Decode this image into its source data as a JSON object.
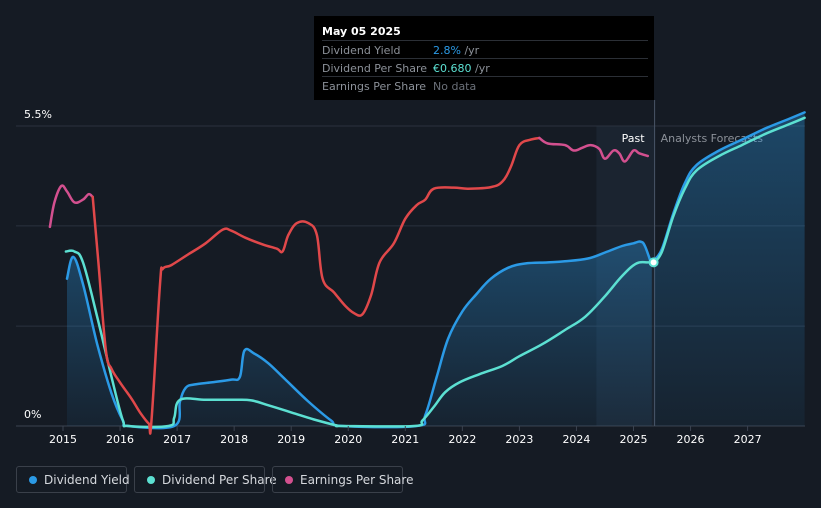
{
  "tooltip": {
    "date": "May 05 2025",
    "rows": [
      {
        "label": "Dividend Yield",
        "value": "2.8%",
        "unit": " /yr",
        "color": "#2b9ae6"
      },
      {
        "label": "Dividend Per Share",
        "value": "€0.680",
        "unit": " /yr",
        "color": "#5ce0d2"
      },
      {
        "label": "Earnings Per Share",
        "value": "No data",
        "unit": "",
        "color": "#6b7079"
      }
    ]
  },
  "legend": [
    {
      "label": "Dividend Yield",
      "color": "#2b9ae6"
    },
    {
      "label": "Dividend Per Share",
      "color": "#5ce0d2"
    },
    {
      "label": "Earnings Per Share",
      "color": "#d3508f"
    }
  ],
  "chart_data": {
    "type": "line",
    "y_axis": {
      "min_label": "0%",
      "max_label": "5.5%",
      "min": 0,
      "max": 5.5,
      "unit": "%"
    },
    "x_ticks": [
      "2015",
      "2016",
      "2017",
      "2018",
      "2019",
      "2020",
      "2021",
      "2022",
      "2023",
      "2024",
      "2025",
      "2026",
      "2027"
    ],
    "x_range": [
      2014.75,
      2028.0
    ],
    "regions": {
      "past_label": "Past",
      "forecast_label": "Analysts Forecasts",
      "past_shade_start": 2024.35,
      "split": 2025.37
    },
    "grid": true,
    "legend_position": "bottom-left",
    "series": [
      {
        "name": "Dividend Yield",
        "color": "#2b9ae6",
        "points": [
          [
            2015.07,
            2.7
          ],
          [
            2015.18,
            3.1
          ],
          [
            2015.35,
            2.6
          ],
          [
            2015.6,
            1.5
          ],
          [
            2015.85,
            0.6
          ],
          [
            2016.05,
            0.1
          ],
          [
            2016.15,
            0
          ],
          [
            2016.95,
            0
          ],
          [
            2017.05,
            0.45
          ],
          [
            2017.15,
            0.7
          ],
          [
            2017.3,
            0.76
          ],
          [
            2017.6,
            0.8
          ],
          [
            2017.95,
            0.85
          ],
          [
            2018.1,
            0.9
          ],
          [
            2018.18,
            1.38
          ],
          [
            2018.35,
            1.33
          ],
          [
            2018.6,
            1.15
          ],
          [
            2018.9,
            0.85
          ],
          [
            2019.3,
            0.45
          ],
          [
            2019.7,
            0.1
          ],
          [
            2019.9,
            0
          ],
          [
            2021.2,
            0
          ],
          [
            2021.35,
            0.2
          ],
          [
            2021.55,
            0.9
          ],
          [
            2021.75,
            1.6
          ],
          [
            2022.0,
            2.1
          ],
          [
            2022.25,
            2.42
          ],
          [
            2022.5,
            2.7
          ],
          [
            2022.8,
            2.9
          ],
          [
            2023.1,
            2.98
          ],
          [
            2023.5,
            3.0
          ],
          [
            2023.8,
            3.02
          ],
          [
            2024.2,
            3.07
          ],
          [
            2024.5,
            3.18
          ],
          [
            2024.8,
            3.3
          ],
          [
            2025.0,
            3.35
          ],
          [
            2025.12,
            3.38
          ],
          [
            2025.2,
            3.3
          ],
          [
            2025.32,
            2.95
          ]
        ],
        "forecast_points": [
          [
            2025.37,
            3.05
          ],
          [
            2025.5,
            3.25
          ],
          [
            2025.7,
            3.9
          ],
          [
            2025.9,
            4.45
          ],
          [
            2026.1,
            4.78
          ],
          [
            2026.5,
            5.05
          ],
          [
            2026.9,
            5.25
          ],
          [
            2027.3,
            5.45
          ],
          [
            2027.7,
            5.62
          ],
          [
            2028.0,
            5.75
          ]
        ]
      },
      {
        "name": "Dividend Per Share",
        "color": "#5ce0d2",
        "points": [
          [
            2015.05,
            3.2
          ],
          [
            2015.2,
            3.2
          ],
          [
            2015.35,
            3.0
          ],
          [
            2015.6,
            2.0
          ],
          [
            2015.85,
            0.9
          ],
          [
            2016.05,
            0.1
          ],
          [
            2016.15,
            0
          ],
          [
            2016.85,
            0
          ],
          [
            2016.95,
            0.15
          ],
          [
            2017.05,
            0.48
          ],
          [
            2017.5,
            0.48
          ],
          [
            2018.0,
            0.48
          ],
          [
            2018.3,
            0.47
          ],
          [
            2018.6,
            0.38
          ],
          [
            2019.0,
            0.25
          ],
          [
            2019.4,
            0.12
          ],
          [
            2019.8,
            0.01
          ],
          [
            2019.9,
            0
          ],
          [
            2021.15,
            0
          ],
          [
            2021.3,
            0.1
          ],
          [
            2021.5,
            0.35
          ],
          [
            2021.7,
            0.62
          ],
          [
            2021.95,
            0.8
          ],
          [
            2022.3,
            0.95
          ],
          [
            2022.7,
            1.1
          ],
          [
            2023.0,
            1.28
          ],
          [
            2023.4,
            1.5
          ],
          [
            2023.8,
            1.76
          ],
          [
            2024.15,
            2.0
          ],
          [
            2024.5,
            2.38
          ],
          [
            2024.8,
            2.75
          ],
          [
            2025.05,
            2.98
          ],
          [
            2025.25,
            3.0
          ],
          [
            2025.35,
            3.0
          ]
        ],
        "forecast_points": [
          [
            2025.37,
            3.0
          ],
          [
            2025.5,
            3.2
          ],
          [
            2025.7,
            3.85
          ],
          [
            2025.9,
            4.35
          ],
          [
            2026.1,
            4.68
          ],
          [
            2026.5,
            4.95
          ],
          [
            2026.9,
            5.15
          ],
          [
            2027.3,
            5.35
          ],
          [
            2027.7,
            5.52
          ],
          [
            2028.0,
            5.65
          ]
        ]
      },
      {
        "name": "Earnings Per Share",
        "color": "#d3508f",
        "points": [
          [
            2014.77,
            3.65
          ],
          [
            2014.85,
            4.1
          ],
          [
            2014.97,
            4.4
          ],
          [
            2015.07,
            4.3
          ],
          [
            2015.2,
            4.1
          ],
          [
            2015.35,
            4.15
          ],
          [
            2015.45,
            4.25
          ],
          [
            2015.52,
            4.2
          ]
        ]
      },
      {
        "name": "Earnings Per Share (past declines)",
        "color": "#e0484a",
        "points": [
          [
            2015.52,
            4.2
          ],
          [
            2015.62,
            3.0
          ],
          [
            2015.75,
            1.4
          ],
          [
            2015.85,
            1.05
          ],
          [
            2016.0,
            0.8
          ],
          [
            2016.2,
            0.5
          ],
          [
            2016.35,
            0.25
          ],
          [
            2016.5,
            0.05
          ],
          [
            2016.55,
            0.08
          ],
          [
            2016.7,
            2.6
          ],
          [
            2016.75,
            2.88
          ],
          [
            2016.9,
            2.95
          ],
          [
            2017.2,
            3.15
          ],
          [
            2017.5,
            3.35
          ],
          [
            2017.8,
            3.6
          ],
          [
            2017.95,
            3.58
          ],
          [
            2018.2,
            3.45
          ],
          [
            2018.5,
            3.33
          ],
          [
            2018.75,
            3.25
          ],
          [
            2018.85,
            3.2
          ],
          [
            2018.95,
            3.5
          ],
          [
            2019.1,
            3.72
          ],
          [
            2019.3,
            3.72
          ],
          [
            2019.45,
            3.5
          ],
          [
            2019.55,
            2.7
          ],
          [
            2019.75,
            2.45
          ],
          [
            2019.95,
            2.2
          ],
          [
            2020.1,
            2.07
          ],
          [
            2020.25,
            2.05
          ],
          [
            2020.4,
            2.4
          ],
          [
            2020.55,
            3.0
          ],
          [
            2020.8,
            3.35
          ],
          [
            2021.0,
            3.8
          ],
          [
            2021.2,
            4.05
          ],
          [
            2021.35,
            4.15
          ],
          [
            2021.5,
            4.35
          ],
          [
            2021.85,
            4.37
          ],
          [
            2022.1,
            4.35
          ],
          [
            2022.5,
            4.38
          ],
          [
            2022.7,
            4.48
          ],
          [
            2022.85,
            4.75
          ],
          [
            2023.0,
            5.15
          ],
          [
            2023.2,
            5.25
          ],
          [
            2023.35,
            5.28
          ]
        ]
      },
      {
        "name": "Earnings Per Share (recent)",
        "color": "#d3508f",
        "points": [
          [
            2023.35,
            5.28
          ],
          [
            2023.5,
            5.18
          ],
          [
            2023.8,
            5.15
          ],
          [
            2023.95,
            5.05
          ],
          [
            2024.1,
            5.1
          ],
          [
            2024.25,
            5.15
          ],
          [
            2024.4,
            5.08
          ],
          [
            2024.5,
            4.9
          ],
          [
            2024.65,
            5.05
          ],
          [
            2024.75,
            5.0
          ],
          [
            2024.85,
            4.85
          ],
          [
            2025.0,
            5.05
          ],
          [
            2025.1,
            5.0
          ],
          [
            2025.25,
            4.95
          ]
        ]
      }
    ]
  }
}
